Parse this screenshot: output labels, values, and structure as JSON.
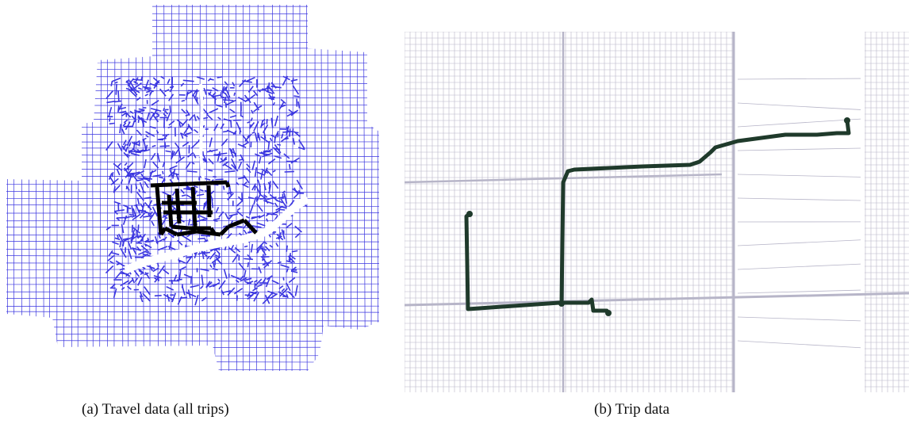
{
  "figure": {
    "panels": [
      {
        "caption": "(a)  Travel data (all trips)",
        "network_color": "#3b36e0",
        "trip_color": "#000000",
        "background": "#ffffff"
      },
      {
        "caption": "(b)  Trip data",
        "network_color": "#b7b5c8",
        "trip_color": "#1f3a2b",
        "background": "#ffffff"
      }
    ]
  }
}
